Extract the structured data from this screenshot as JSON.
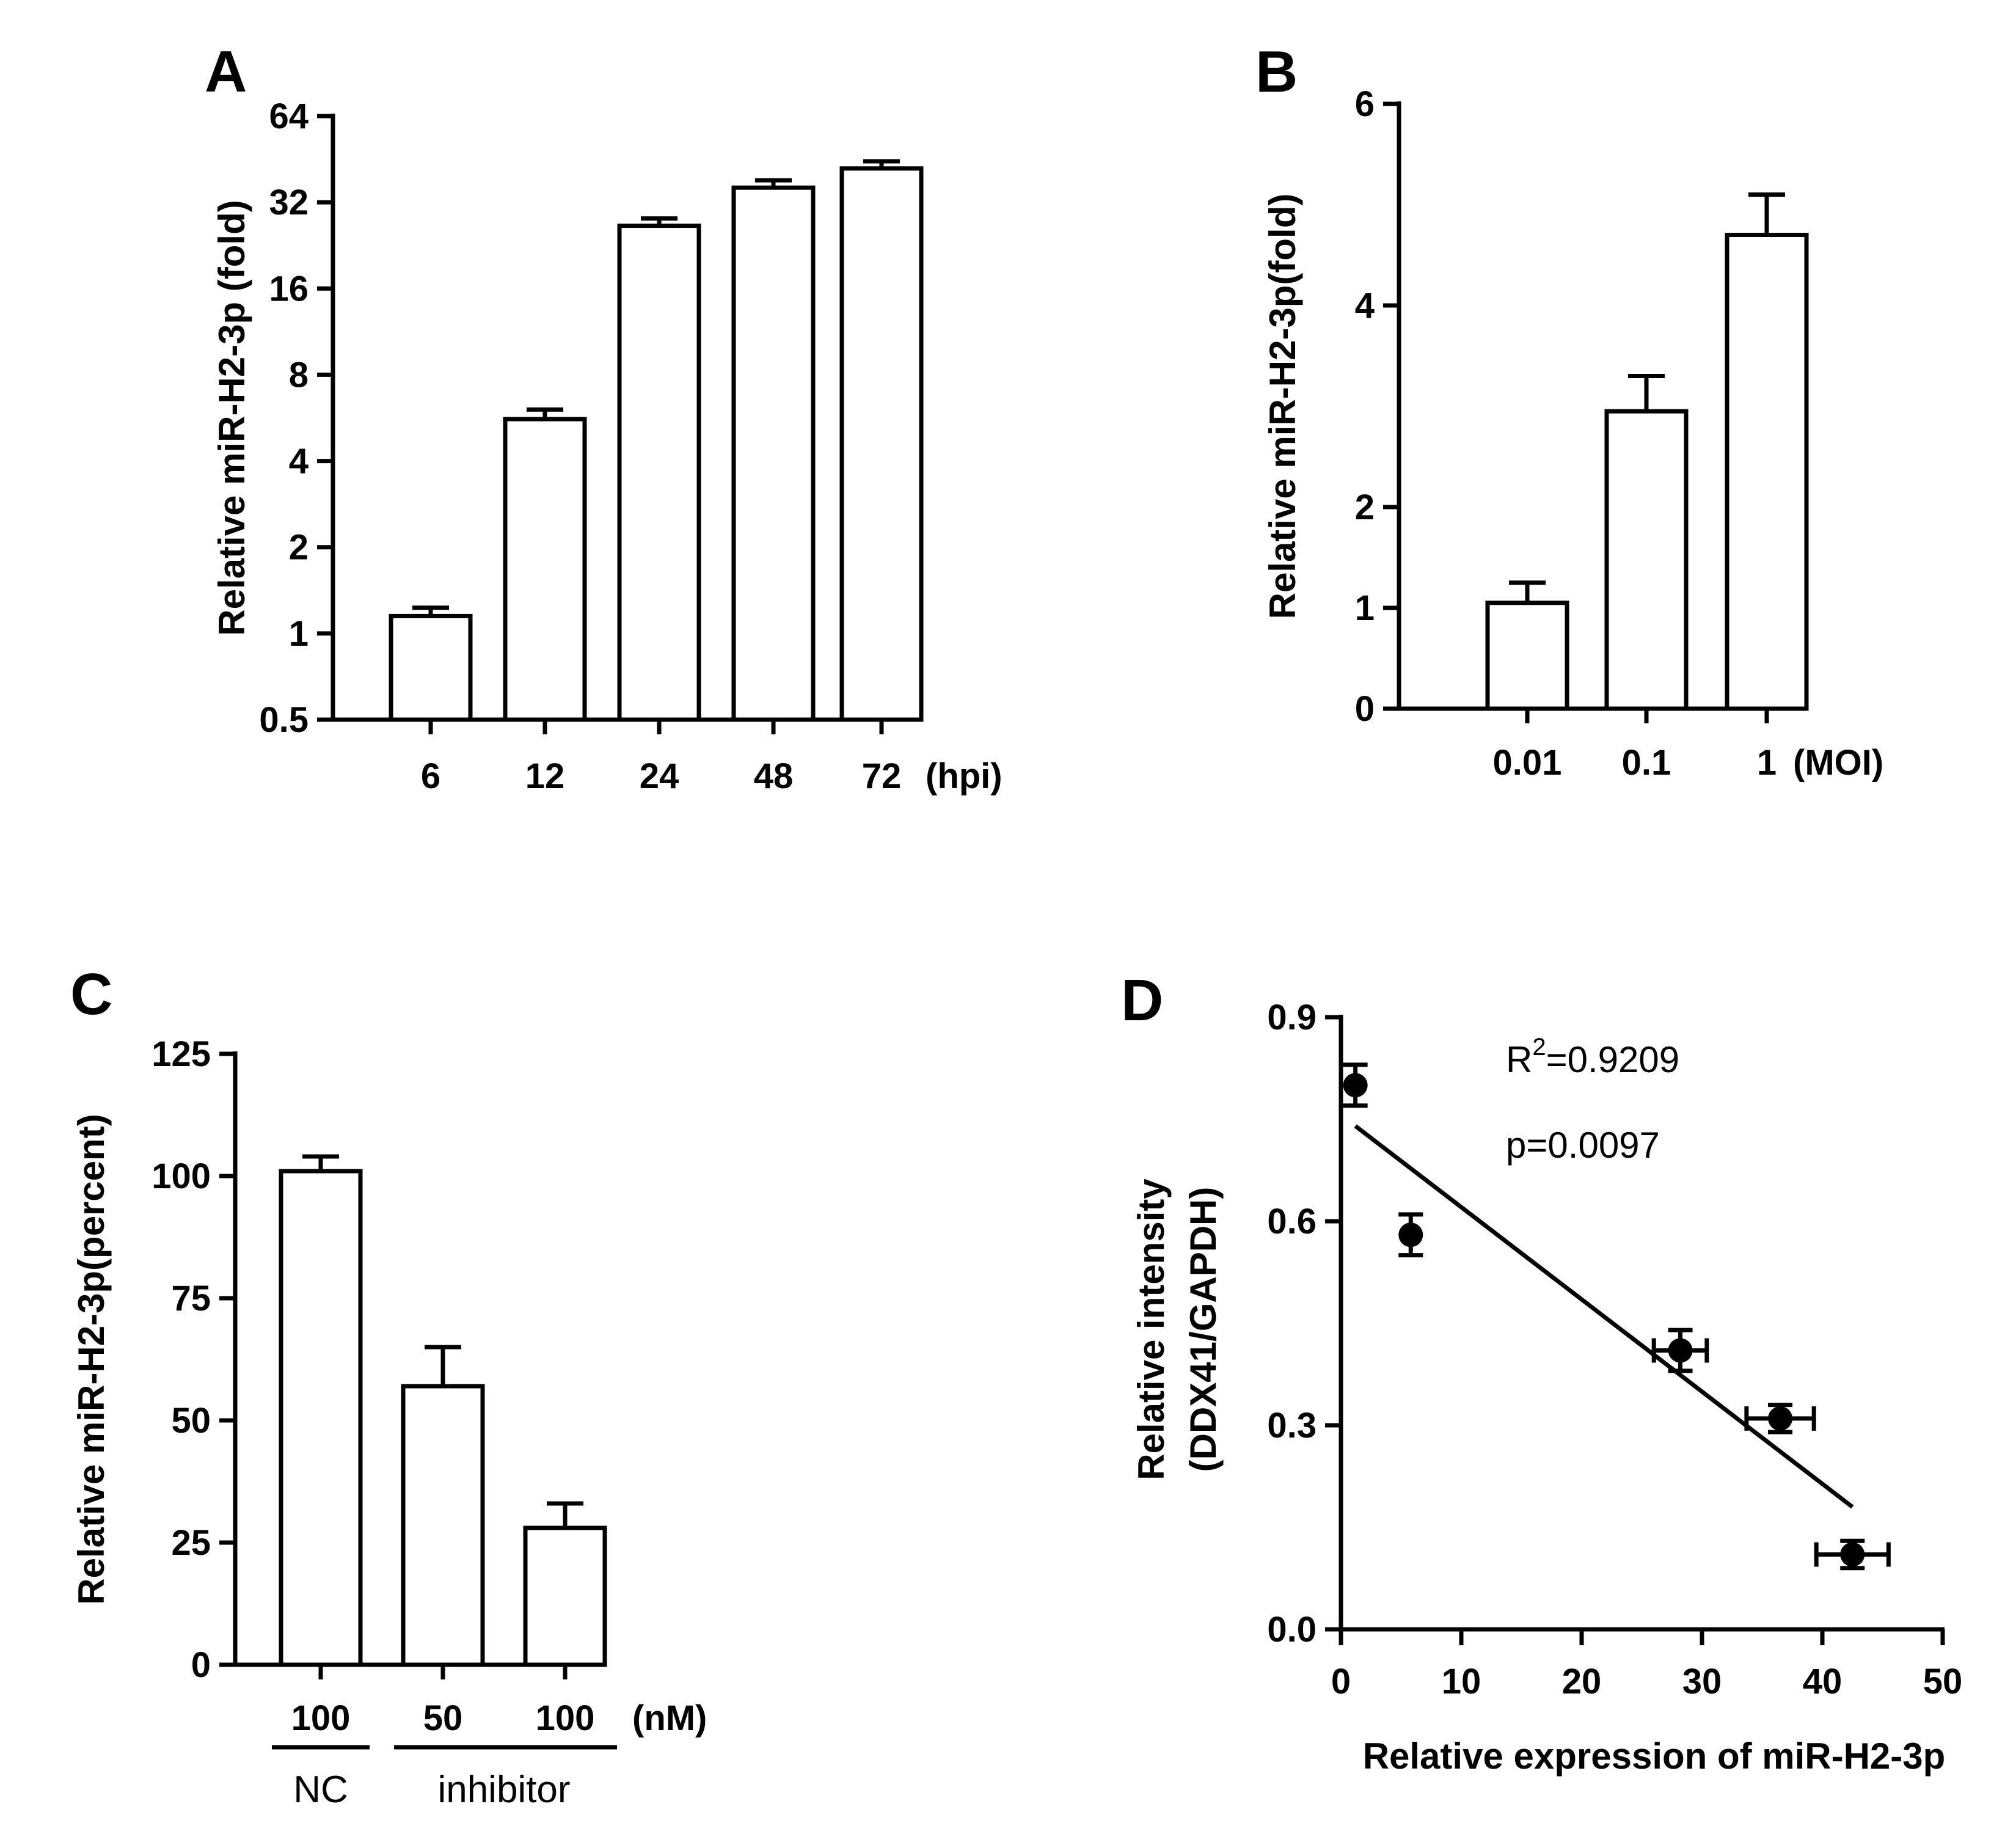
{
  "colors": {
    "ink": "#000000",
    "bar_fill": "#ffffff",
    "background": "#ffffff"
  },
  "chart_data": [
    {
      "panel": "A",
      "type": "bar",
      "scale": "log2",
      "ylabel": "Relative miR-H2-3p (fold)",
      "xlabel": "(hpi)",
      "yticks": [
        0.5,
        1,
        2,
        4,
        8,
        16,
        32,
        64
      ],
      "ytick_labels": [
        "0.5",
        "1",
        "2",
        "4",
        "8",
        "16",
        "32",
        "64"
      ],
      "ylim": [
        0.5,
        64
      ],
      "categories": [
        "6",
        "12",
        "24",
        "48",
        "72"
      ],
      "values": [
        1.15,
        5.6,
        26.5,
        36.0,
        42.0
      ],
      "errors": [
        0.08,
        0.45,
        1.6,
        2.2,
        2.5
      ]
    },
    {
      "panel": "B",
      "type": "bar",
      "scale": "linear",
      "ylabel": "Relative miR-H2-3p(fold)",
      "xlabel": "(MOI)",
      "yticks": [
        0,
        1,
        2,
        4,
        6
      ],
      "ytick_labels": [
        "0",
        "1",
        "2",
        "4",
        "6"
      ],
      "ylim": [
        0,
        6
      ],
      "categories": [
        "0.01",
        "0.1",
        "1"
      ],
      "values": [
        1.05,
        2.95,
        4.7
      ],
      "errors": [
        0.2,
        0.35,
        0.4
      ]
    },
    {
      "panel": "C",
      "type": "bar",
      "scale": "linear",
      "ylabel": "Relative miR-H2-3p(percent)",
      "xlabel": "(nM)",
      "yticks": [
        0,
        25,
        50,
        75,
        100,
        125
      ],
      "ytick_labels": [
        "0",
        "25",
        "50",
        "75",
        "100",
        "125"
      ],
      "ylim": [
        0,
        125
      ],
      "categories": [
        "100",
        "50",
        "100"
      ],
      "values": [
        101,
        57,
        28
      ],
      "errors": [
        3,
        8,
        5
      ],
      "groups": [
        {
          "label": "NC",
          "members": [
            0
          ]
        },
        {
          "label": "inhibitor",
          "members": [
            1,
            2
          ]
        }
      ]
    },
    {
      "panel": "D",
      "type": "scatter",
      "scale": "linear",
      "xlabel": "Relative expression of miR-H2-3p",
      "ylabel_line1": "Relative intensity",
      "ylabel_line2": "(DDX41/GAPDH)",
      "xticks": [
        0,
        10,
        20,
        30,
        40,
        50
      ],
      "xtick_labels": [
        "0",
        "10",
        "20",
        "30",
        "40",
        "50"
      ],
      "yticks": [
        0.0,
        0.3,
        0.6,
        0.9
      ],
      "ytick_labels": [
        "0.0",
        "0.3",
        "0.6",
        "0.9"
      ],
      "xlim": [
        0,
        50
      ],
      "ylim": [
        0,
        0.9
      ],
      "x": [
        1.2,
        5.8,
        28.2,
        36.5,
        42.5
      ],
      "y": [
        0.8,
        0.58,
        0.41,
        0.31,
        0.11
      ],
      "xerr": [
        0.2,
        0.2,
        2.2,
        2.8,
        3.0
      ],
      "yerr": [
        0.03,
        0.03,
        0.03,
        0.02,
        0.02
      ],
      "fit_line": {
        "x": [
          1.2,
          42.5
        ],
        "y": [
          0.74,
          0.18
        ]
      },
      "annotations": {
        "r2_prefix": "R",
        "r2_sup": "2",
        "r2_value": "=0.9209",
        "p_text": "p=0.0097"
      }
    }
  ]
}
